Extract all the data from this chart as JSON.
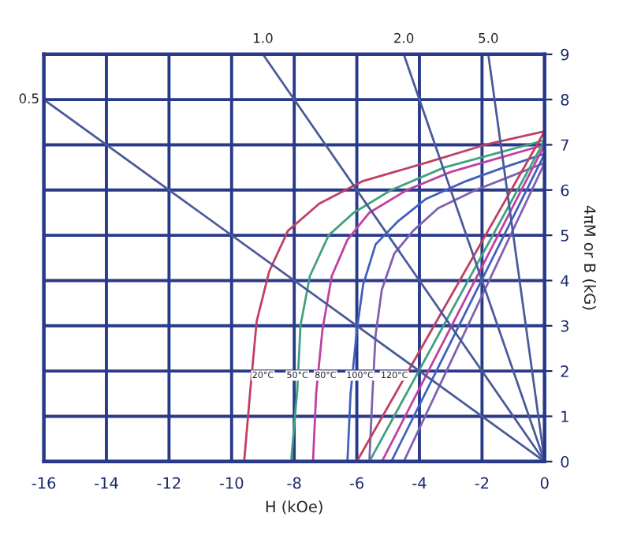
{
  "chart_data": {
    "type": "line",
    "xlabel": "H (kOe)",
    "ylabel": "4πM or B (kG)",
    "xlim": [
      -16,
      0
    ],
    "xticks": [
      -16,
      -14,
      -12,
      -10,
      -8,
      -6,
      -4,
      -2,
      0
    ],
    "ylim": [
      0,
      9
    ],
    "yticks": [
      0,
      1,
      2,
      3,
      4,
      5,
      6,
      7,
      8,
      9
    ],
    "grid": true,
    "marker": "none",
    "line_style": "solid",
    "series": [
      {
        "color": "#c04060",
        "x": [
          0,
          -1.9,
          -3.8,
          -5.8,
          -7.2,
          -8.2,
          -8.8,
          -9.2,
          -9.4,
          -9.6
        ],
        "values": [
          7.3,
          7.0,
          6.6,
          6.2,
          5.7,
          5.1,
          4.2,
          3.1,
          1.6,
          0
        ]
      },
      {
        "color": "#40a080",
        "x": [
          0,
          -1.6,
          -3.2,
          -4.9,
          -6.1,
          -6.9,
          -7.5,
          -7.8,
          -7.9,
          -8.1
        ],
        "values": [
          7.1,
          6.8,
          6.5,
          6.0,
          5.5,
          5.0,
          4.1,
          3.0,
          1.6,
          0
        ]
      },
      {
        "color": "#c040a0",
        "x": [
          0,
          -1.5,
          -3.0,
          -4.4,
          -5.6,
          -6.3,
          -6.8,
          -7.1,
          -7.3,
          -7.4
        ],
        "values": [
          7.0,
          6.7,
          6.4,
          6.0,
          5.5,
          4.9,
          4.1,
          2.9,
          1.5,
          0
        ]
      },
      {
        "color": "#4060c0",
        "x": [
          0,
          -1.3,
          -2.5,
          -3.8,
          -4.7,
          -5.4,
          -5.8,
          -6.0,
          -6.2,
          -6.3
        ],
        "values": [
          6.8,
          6.5,
          6.2,
          5.8,
          5.3,
          4.8,
          3.9,
          2.9,
          1.5,
          0
        ]
      },
      {
        "color": "#8060b0",
        "x": [
          0,
          -1.1,
          -2.2,
          -3.4,
          -4.2,
          -4.8,
          -5.2,
          -5.4,
          -5.5,
          -5.6
        ],
        "values": [
          6.6,
          6.3,
          6.0,
          5.6,
          5.1,
          4.6,
          3.8,
          2.8,
          1.5,
          0
        ]
      },
      {
        "color": "#c04060",
        "x": [
          0,
          -6.0
        ],
        "values": [
          7.3,
          0
        ]
      },
      {
        "color": "#40a080",
        "x": [
          0,
          -5.6
        ],
        "values": [
          7.1,
          0
        ]
      },
      {
        "color": "#c040a0",
        "x": [
          0,
          -5.2
        ],
        "values": [
          7.0,
          0
        ]
      },
      {
        "color": "#4060c0",
        "x": [
          0,
          -4.9
        ],
        "values": [
          6.8,
          0
        ]
      },
      {
        "color": "#8060b0",
        "x": [
          0,
          -4.5
        ],
        "values": [
          6.6,
          0
        ]
      },
      {
        "color": "#4a5a9a",
        "x": [
          0,
          -16
        ],
        "values": [
          0,
          8
        ]
      },
      {
        "color": "#4a5a9a",
        "x": [
          0,
          -9
        ],
        "values": [
          0,
          9
        ]
      },
      {
        "color": "#4a5a9a",
        "x": [
          0,
          -4.5
        ],
        "values": [
          0,
          9
        ]
      },
      {
        "color": "#4a5a9a",
        "x": [
          0,
          -1.8
        ],
        "values": [
          0,
          9
        ]
      }
    ],
    "annotations": [
      {
        "text": "0.5",
        "x": -16,
        "y": 8
      },
      {
        "text": "1.0",
        "x": -9,
        "y": 9
      },
      {
        "text": "2.0",
        "x": -4.5,
        "y": 9
      },
      {
        "text": "5.0",
        "x": -1.8,
        "y": 9
      },
      {
        "text": "20°C",
        "x": -9.0,
        "y": 1.9
      },
      {
        "text": "50°C",
        "x": -7.9,
        "y": 1.9
      },
      {
        "text": "80°C",
        "x": -7.0,
        "y": 1.9
      },
      {
        "text": "100°C",
        "x": -5.9,
        "y": 1.9
      },
      {
        "text": "120°C",
        "x": -4.8,
        "y": 1.9
      }
    ]
  }
}
